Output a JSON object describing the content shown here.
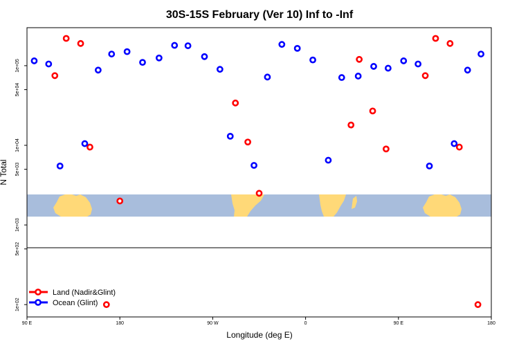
{
  "chart_data": {
    "type": "scatter",
    "title": "30S-15S February (Ver 10)   Inf to -Inf",
    "xlabel": "Longitude (deg E)",
    "ylabel": "N Total",
    "xlim": [
      90,
      540
    ],
    "ylim": [
      70,
      300000
    ],
    "y_scale": "log",
    "x_ticks": [
      {
        "value": 90,
        "label": "90 E"
      },
      {
        "value": 180,
        "label": "180"
      },
      {
        "value": 270,
        "label": "90 W"
      },
      {
        "value": 360,
        "label": "0"
      },
      {
        "value": 450,
        "label": "90 E"
      },
      {
        "value": 540,
        "label": "180"
      }
    ],
    "y_ticks": [
      {
        "value": 100,
        "label": "1e+02"
      },
      {
        "value": 500,
        "label": "5e+02"
      },
      {
        "value": 1000,
        "label": "1e+03"
      },
      {
        "value": 5000,
        "label": "5e+03"
      },
      {
        "value": 10000,
        "label": "1e+04"
      },
      {
        "value": 50000,
        "label": "5e+04"
      },
      {
        "value": 100000,
        "label": "1e+05"
      }
    ],
    "series": [
      {
        "name": "Land (Nadir&Glint)",
        "color": "#ff0000",
        "points": [
          {
            "x": 117,
            "y": 75000
          },
          {
            "x": 128,
            "y": 220000
          },
          {
            "x": 142,
            "y": 190000
          },
          {
            "x": 151,
            "y": 9500
          },
          {
            "x": 167,
            "y": 100
          },
          {
            "x": 180,
            "y": 2000
          },
          {
            "x": 292,
            "y": 34000
          },
          {
            "x": 304,
            "y": 11000
          },
          {
            "x": 315,
            "y": 2500
          },
          {
            "x": 404,
            "y": 18000
          },
          {
            "x": 412,
            "y": 120000
          },
          {
            "x": 425,
            "y": 27000
          },
          {
            "x": 438,
            "y": 9000
          },
          {
            "x": 476,
            "y": 75000
          },
          {
            "x": 486,
            "y": 220000
          },
          {
            "x": 500,
            "y": 190000
          },
          {
            "x": 509,
            "y": 9500
          },
          {
            "x": 527,
            "y": 100
          }
        ]
      },
      {
        "name": "Ocean (Glint)",
        "color": "#0000ff",
        "points": [
          {
            "x": 97,
            "y": 115000
          },
          {
            "x": 111,
            "y": 105000
          },
          {
            "x": 122,
            "y": 5500
          },
          {
            "x": 146,
            "y": 10500
          },
          {
            "x": 159,
            "y": 88000
          },
          {
            "x": 172,
            "y": 140000
          },
          {
            "x": 187,
            "y": 150000
          },
          {
            "x": 202,
            "y": 110000
          },
          {
            "x": 218,
            "y": 125000
          },
          {
            "x": 233,
            "y": 180000
          },
          {
            "x": 246,
            "y": 178000
          },
          {
            "x": 262,
            "y": 130000
          },
          {
            "x": 277,
            "y": 90000
          },
          {
            "x": 287,
            "y": 13000
          },
          {
            "x": 310,
            "y": 5600
          },
          {
            "x": 323,
            "y": 72000
          },
          {
            "x": 337,
            "y": 185000
          },
          {
            "x": 352,
            "y": 165000
          },
          {
            "x": 367,
            "y": 118000
          },
          {
            "x": 382,
            "y": 6500
          },
          {
            "x": 395,
            "y": 71000
          },
          {
            "x": 411,
            "y": 74000
          },
          {
            "x": 426,
            "y": 98000
          },
          {
            "x": 440,
            "y": 93000
          },
          {
            "x": 455,
            "y": 115000
          },
          {
            "x": 469,
            "y": 105000
          },
          {
            "x": 480,
            "y": 5500
          },
          {
            "x": 504,
            "y": 10500
          },
          {
            "x": 517,
            "y": 88000
          },
          {
            "x": 530,
            "y": 140000
          }
        ]
      }
    ],
    "legend": {
      "placement": "bottom-left",
      "entries": [
        "Land (Nadir&Glint)",
        "Ocean (Glint)"
      ]
    }
  }
}
